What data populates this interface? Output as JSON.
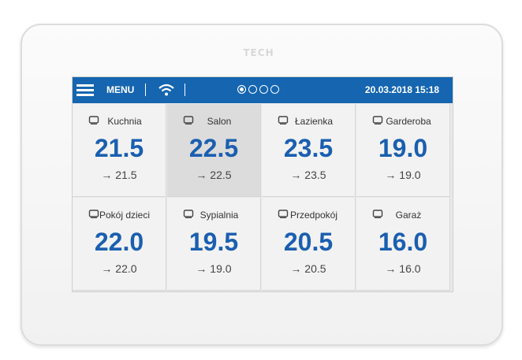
{
  "brand": "TECH",
  "header": {
    "menu": "MENU",
    "datetime": "20.03.2018 15:18"
  },
  "rooms": [
    {
      "name": "Kuchnia",
      "temp": "21.5",
      "set": "→ 21.5"
    },
    {
      "name": "Salon",
      "temp": "22.5",
      "set": "→ 22.5"
    },
    {
      "name": "Łazienka",
      "temp": "23.5",
      "set": "→ 23.5"
    },
    {
      "name": "Garderoba",
      "temp": "19.0",
      "set": "→ 19.0"
    },
    {
      "name": "Pokój dzieci",
      "temp": "22.0",
      "set": "→ 22.0"
    },
    {
      "name": "Sypialnia",
      "temp": "19.5",
      "set": "→ 19.0"
    },
    {
      "name": "Przedpokój",
      "temp": "20.5",
      "set": "→ 20.5"
    },
    {
      "name": "Garaż",
      "temp": "16.0",
      "set": "→ 16.0"
    }
  ]
}
